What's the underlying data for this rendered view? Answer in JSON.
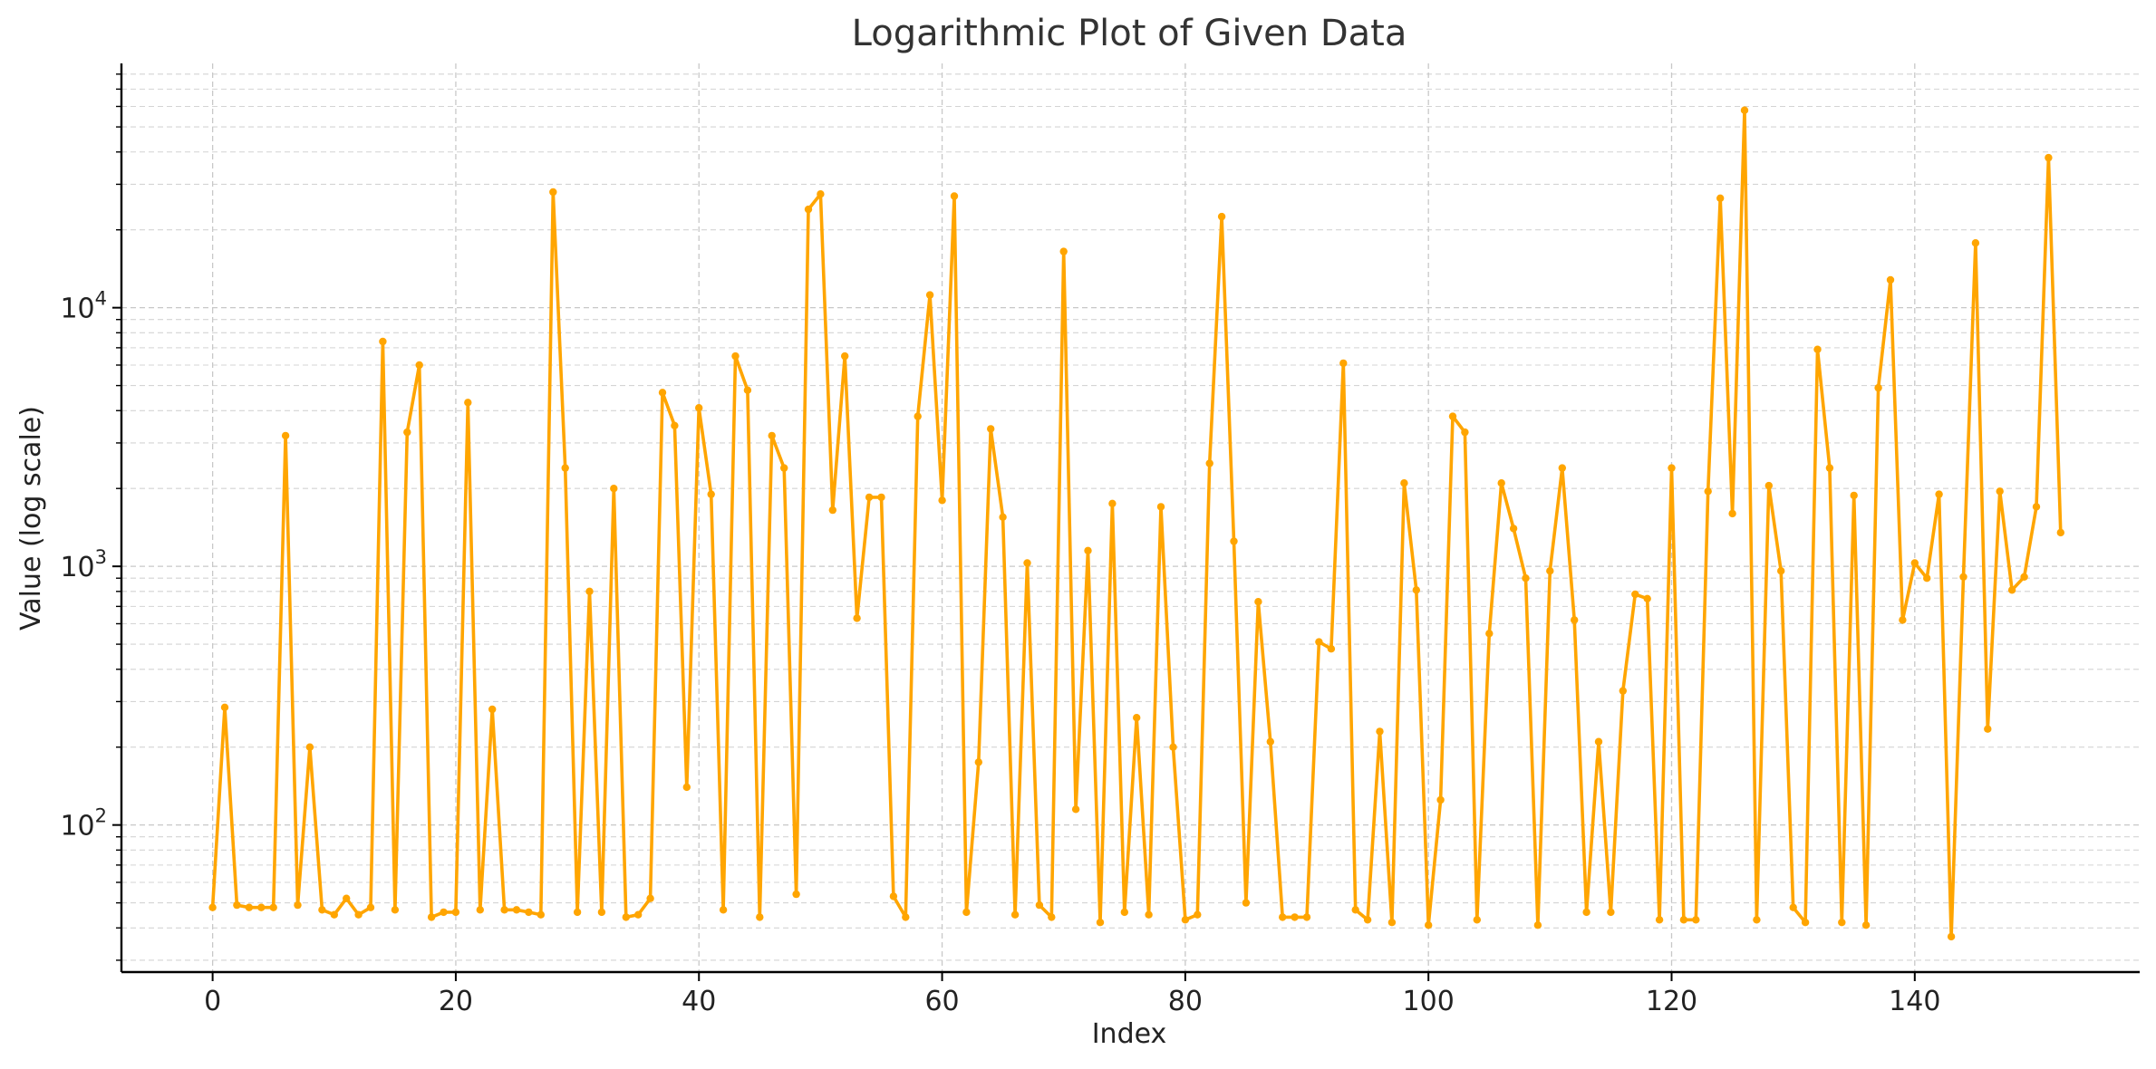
{
  "chart_data": {
    "type": "line",
    "title": "Logarithmic Plot of Given Data",
    "xlabel": "Index",
    "ylabel": "Value (log scale)",
    "xlim": [
      -7.5,
      158.5
    ],
    "ylim": [
      27,
      88000
    ],
    "y_scale": "log",
    "grid": true,
    "color": "#FFA500",
    "x_ticks": [
      0,
      20,
      40,
      60,
      80,
      100,
      120,
      140
    ],
    "y_ticks": [
      {
        "value": 100,
        "base": "10",
        "exp": "2"
      },
      {
        "value": 1000,
        "base": "10",
        "exp": "3"
      },
      {
        "value": 10000,
        "base": "10",
        "exp": "4"
      }
    ],
    "series": [
      {
        "values": [
          48,
          285,
          49,
          48,
          48,
          48,
          3200,
          49,
          200,
          47,
          45,
          52,
          45,
          48,
          7400,
          47,
          3300,
          6000,
          44,
          46,
          46,
          4300,
          47,
          280,
          47,
          47,
          46,
          45,
          28000,
          2400,
          46,
          800,
          46,
          2000,
          44,
          45,
          52,
          4700,
          3500,
          140,
          4100,
          1900,
          47,
          6500,
          4800,
          44,
          3200,
          2400,
          54,
          24000,
          27500,
          1650,
          6500,
          630,
          1850,
          1850,
          53,
          44,
          3800,
          11200,
          1800,
          27000,
          46,
          175,
          3400,
          1550,
          45,
          1030,
          49,
          44,
          16500,
          115,
          1150,
          42,
          1750,
          46,
          260,
          45,
          1700,
          200,
          43,
          45,
          2500,
          22500,
          1250,
          50,
          730,
          210,
          44,
          44,
          44,
          510,
          480,
          6100,
          47,
          43,
          230,
          42,
          2100,
          810,
          41,
          125,
          3800,
          3300,
          43,
          550,
          2100,
          1400,
          900,
          41,
          960,
          2400,
          620,
          46,
          210,
          46,
          330,
          780,
          750,
          43,
          2400,
          43,
          43,
          1950,
          26500,
          1600,
          58000,
          43,
          2050,
          960,
          48,
          42,
          6900,
          2400,
          42,
          1880,
          41,
          4900,
          12800,
          620,
          1030,
          900,
          1900,
          37,
          910,
          17800,
          235,
          1950,
          810,
          910,
          1700,
          38000,
          1350
        ]
      }
    ]
  }
}
